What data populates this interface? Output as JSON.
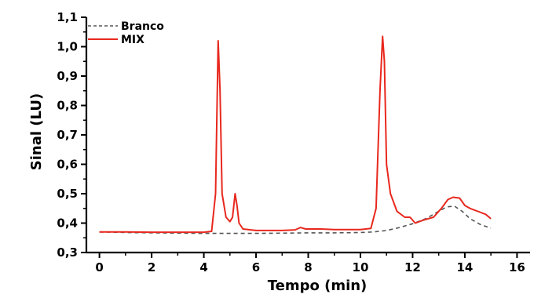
{
  "chart_data": {
    "type": "line",
    "title": "",
    "xlabel": "Tempo (min)",
    "ylabel": "Sinal (LU)",
    "xlim": [
      -0.5,
      16.5
    ],
    "ylim": [
      0.3,
      1.1
    ],
    "xticks": [
      0,
      2,
      4,
      6,
      8,
      10,
      12,
      14,
      16
    ],
    "xtick_labels": [
      "0",
      "2",
      "4",
      "6",
      "8",
      "10",
      "12",
      "14",
      "16"
    ],
    "yticks": [
      0.3,
      0.4,
      0.5,
      0.6,
      0.7,
      0.8,
      0.9,
      1.0,
      1.1
    ],
    "ytick_labels": [
      "0,3",
      "0,4",
      "0,5",
      "0,6",
      "0,7",
      "0,8",
      "0,9",
      "1,0",
      "1,1"
    ],
    "grid": false,
    "legend_position": "top-left",
    "series": [
      {
        "name": "Branco",
        "color": "#555555",
        "style": "dashed",
        "x": [
          0,
          1,
          2,
          3,
          4,
          5,
          6,
          7,
          8,
          9,
          10,
          10.5,
          11,
          11.5,
          12,
          12.5,
          13,
          13.3,
          13.6,
          13.9,
          14.2,
          14.6,
          15
        ],
        "y": [
          0.37,
          0.368,
          0.367,
          0.366,
          0.365,
          0.365,
          0.365,
          0.366,
          0.367,
          0.367,
          0.368,
          0.37,
          0.375,
          0.385,
          0.398,
          0.415,
          0.44,
          0.455,
          0.458,
          0.44,
          0.415,
          0.395,
          0.383
        ]
      },
      {
        "name": "MIX",
        "color": "#e8281e",
        "style": "solid",
        "x": [
          0,
          1,
          2,
          3,
          4,
          4.3,
          4.45,
          4.55,
          4.62,
          4.7,
          4.85,
          5.0,
          5.1,
          5.2,
          5.27,
          5.35,
          5.5,
          6,
          7,
          7.5,
          7.7,
          7.9,
          8.5,
          9,
          10,
          10.4,
          10.6,
          10.75,
          10.85,
          10.92,
          11.0,
          11.15,
          11.4,
          11.7,
          11.9,
          12.1,
          12.4,
          12.8,
          13.1,
          13.35,
          13.55,
          13.8,
          14.0,
          14.2,
          14.5,
          14.8,
          15
        ],
        "y": [
          0.37,
          0.37,
          0.369,
          0.369,
          0.369,
          0.372,
          0.5,
          1.02,
          0.85,
          0.5,
          0.42,
          0.405,
          0.42,
          0.5,
          0.46,
          0.4,
          0.38,
          0.375,
          0.375,
          0.377,
          0.385,
          0.38,
          0.38,
          0.378,
          0.378,
          0.382,
          0.45,
          0.85,
          1.035,
          0.95,
          0.6,
          0.5,
          0.44,
          0.42,
          0.42,
          0.4,
          0.41,
          0.42,
          0.45,
          0.48,
          0.488,
          0.485,
          0.46,
          0.45,
          0.44,
          0.43,
          0.415
        ]
      }
    ]
  }
}
